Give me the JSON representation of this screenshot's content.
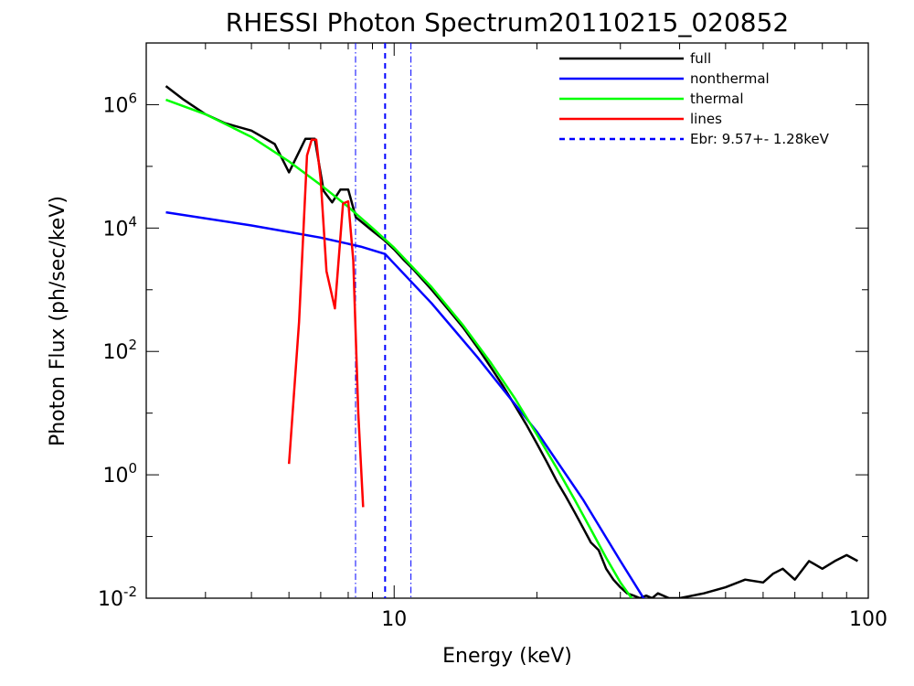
{
  "chart_data": {
    "type": "line",
    "title": "RHESSI Photon Spectrum20110215_020852",
    "xlabel": "Energy (keV)",
    "ylabel": "Photon Flux (ph/sec/keV)",
    "x_scale": "log",
    "y_scale": "log",
    "xlim": [
      3,
      100
    ],
    "ylim": [
      0.01,
      10000000
    ],
    "x_ticks": [
      {
        "value": 10,
        "label": "10"
      },
      {
        "value": 100,
        "label": "100"
      }
    ],
    "y_ticks": [
      {
        "value": 0.01,
        "base": "10",
        "exp": "-2"
      },
      {
        "value": 1,
        "base": "10",
        "exp": "0"
      },
      {
        "value": 100,
        "base": "10",
        "exp": "2"
      },
      {
        "value": 10000,
        "base": "10",
        "exp": "4"
      },
      {
        "value": 1000000,
        "base": "10",
        "exp": "6"
      }
    ],
    "grid": false,
    "legend_position": "top-right",
    "series": [
      {
        "name": "full",
        "color": "#000000",
        "style": "solid",
        "x": [
          3.3,
          3.6,
          4.0,
          4.4,
          5.0,
          5.6,
          6.0,
          6.5,
          6.8,
          7.1,
          7.4,
          7.7,
          8.0,
          8.3,
          8.6,
          9.0,
          9.5,
          10.0,
          10.5,
          11.0,
          12.0,
          13.0,
          14.0,
          15.0,
          16.0,
          17.0,
          18.0,
          19.0,
          20.0,
          21.0,
          22.0,
          23.0,
          24.0,
          25.0,
          26.0,
          27.0,
          28.0,
          29.0,
          30.0,
          31.0,
          32.0,
          33.0,
          34.0,
          35.0,
          36.0,
          38.0,
          40.0,
          45.0,
          50.0,
          55.0,
          60.0,
          63.0,
          66.0,
          70.0,
          75.0,
          80.0,
          85.0,
          90.0,
          95.0
        ],
        "y": [
          2000000,
          1200000,
          700000,
          500000,
          380000,
          230000,
          80000,
          280000,
          280000,
          40000,
          26000,
          42000,
          42000,
          15000,
          12000,
          9000,
          6500,
          4500,
          3000,
          2100,
          1000,
          480,
          240,
          115,
          55,
          27,
          13,
          6.5,
          3.2,
          1.6,
          0.8,
          0.45,
          0.25,
          0.14,
          0.08,
          0.06,
          0.03,
          0.02,
          0.015,
          0.012,
          0.011,
          0.01,
          0.011,
          0.01,
          0.012,
          0.01,
          0.01,
          0.012,
          0.015,
          0.02,
          0.018,
          0.025,
          0.03,
          0.02,
          0.04,
          0.03,
          0.04,
          0.05,
          0.04
        ]
      },
      {
        "name": "nonthermal",
        "color": "#0000ff",
        "style": "solid",
        "x": [
          3.3,
          5.0,
          7.0,
          8.5,
          9.57,
          12.0,
          15.0,
          20.0,
          25.0,
          30.0,
          35.0
        ],
        "y": [
          18000,
          11000,
          7000,
          5000,
          3800,
          600,
          80,
          5,
          0.4,
          0.04,
          0.006
        ]
      },
      {
        "name": "thermal",
        "color": "#00ff00",
        "style": "solid",
        "x": [
          3.3,
          4.0,
          5.0,
          6.0,
          7.0,
          8.0,
          9.0,
          10.0,
          12.0,
          14.0,
          16.0,
          18.0,
          20.0,
          22.0,
          24.0,
          26.0,
          28.0,
          30.0,
          32.0,
          34.0
        ],
        "y": [
          1200000,
          700000,
          300000,
          120000,
          50000,
          22000,
          10000,
          4800,
          1100,
          260,
          65,
          17,
          4.5,
          1.3,
          0.4,
          0.13,
          0.045,
          0.018,
          0.009,
          0.005
        ]
      },
      {
        "name": "lines",
        "color": "#ff0000",
        "style": "solid",
        "x": [
          6.0,
          6.3,
          6.55,
          6.7,
          6.85,
          7.0,
          7.2,
          7.5,
          7.8,
          8.0,
          8.2,
          8.4,
          8.6
        ],
        "y": [
          1.5,
          300,
          150000,
          270000,
          270000,
          60000,
          2000,
          500,
          25000,
          27000,
          3000,
          10,
          0.3
        ]
      }
    ],
    "vlines": [
      {
        "name": "Ebr:   9.57+-  1.28keV",
        "x": 9.57,
        "color": "#0000ff",
        "style": "dash",
        "in_legend": true
      },
      {
        "x": 8.29,
        "color": "#0000ff",
        "style": "dashdot",
        "in_legend": false
      },
      {
        "x": 10.85,
        "color": "#0000ff",
        "style": "dashdot",
        "in_legend": false
      }
    ]
  }
}
